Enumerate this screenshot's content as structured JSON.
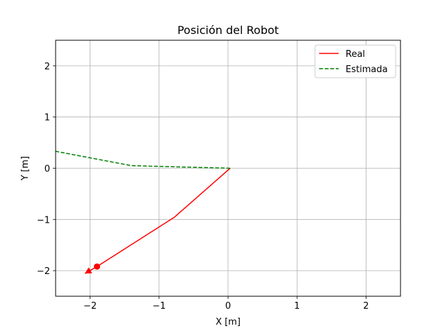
{
  "chart_data": {
    "type": "line",
    "title": "Posición del Robot",
    "xlabel": "X [m]",
    "ylabel": "Y [m]",
    "xlim": [
      -2.5,
      2.5
    ],
    "ylim": [
      -2.5,
      2.5
    ],
    "xticks": [
      -2,
      -1,
      0,
      1,
      2
    ],
    "xtick_labels": [
      "−2",
      "−1",
      "0",
      "1",
      "2"
    ],
    "yticks": [
      -2,
      -1,
      0,
      1,
      2
    ],
    "ytick_labels": [
      "−2",
      "−1",
      "0",
      "1",
      "2"
    ],
    "grid": true,
    "legend_position": "top-right",
    "series": [
      {
        "name": "Real",
        "color": "#ff0000",
        "style": "solid",
        "x": [
          0.03,
          -0.78,
          -1.9
        ],
        "y": [
          0.0,
          -0.96,
          -1.92
        ]
      },
      {
        "name": "Estimada",
        "color": "#008000",
        "style": "dashed",
        "x": [
          0.03,
          -1.4,
          -2.5
        ],
        "y": [
          0.0,
          0.05,
          0.33
        ]
      }
    ],
    "robot_marker": {
      "x": -1.9,
      "y": -1.92,
      "heading_deg": 210,
      "color": "#ff0000"
    }
  }
}
